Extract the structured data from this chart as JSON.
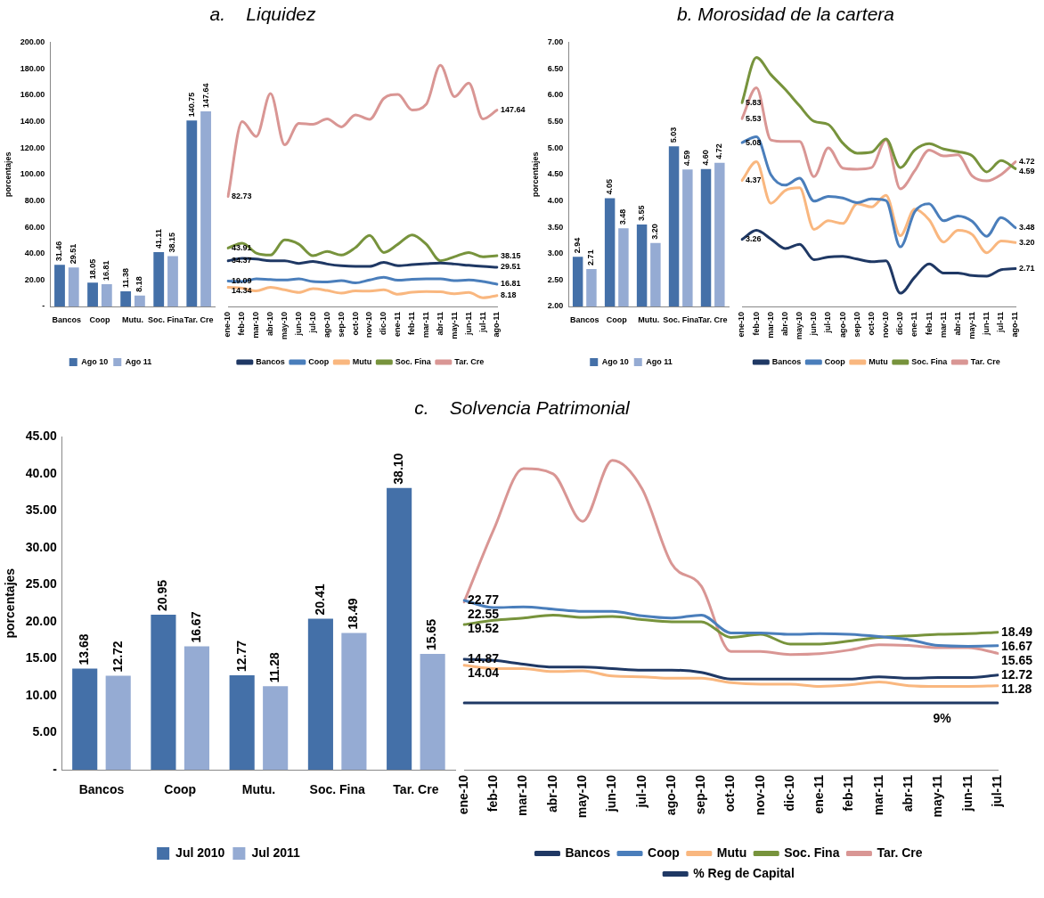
{
  "chart_data": [
    {
      "type": "bar",
      "ylabel": "porcentajes",
      "categories": [
        "Bancos",
        "Coop",
        "Mutu.",
        "Soc. Fina",
        "Tar. Cre"
      ],
      "legend": "bottom",
      "ylim": [
        0,
        200
      ],
      "yticks": [
        {
          "value": 0,
          "label": "-"
        },
        {
          "value": 20,
          "label": "20.00"
        },
        {
          "value": 40,
          "label": "40.00"
        },
        {
          "value": 60,
          "label": "60.00"
        },
        {
          "value": 80,
          "label": "80.00"
        },
        {
          "value": 100,
          "label": "100.00"
        },
        {
          "value": 120,
          "label": "120.00"
        },
        {
          "value": 140,
          "label": "140.00"
        },
        {
          "value": 160,
          "label": "160.00"
        },
        {
          "value": 180,
          "label": "180.00"
        },
        {
          "value": 200,
          "label": "200.00"
        }
      ],
      "series": [
        {
          "name": "Ago 10",
          "color": "#4470a8",
          "values": [
            31.46,
            18.05,
            11.38,
            41.11,
            140.75
          ],
          "value_labels": [
            "31.46",
            "18.05",
            "11.38",
            "41.11",
            "140.75"
          ]
        },
        {
          "name": "Ago 11",
          "color": "#95abd3",
          "values": [
            29.51,
            16.81,
            8.18,
            38.15,
            147.64
          ],
          "value_labels": [
            "29.51",
            "16.81",
            "8.18",
            "38.15",
            "147.64"
          ]
        }
      ]
    },
    {
      "type": "line",
      "title": "a.    Liquidez",
      "categories": [
        "ene-10",
        "feb-10",
        "mar-10",
        "abr-10",
        "may-10",
        "jun-10",
        "jul-10",
        "ago-10",
        "sep-10",
        "oct-10",
        "nov-10",
        "dic-10",
        "ene-11",
        "feb-11",
        "mar-11",
        "abr-11",
        "may-11",
        "jun-11",
        "jul-11",
        "ago-11"
      ],
      "legend": "bottom",
      "marker": "none",
      "tick_labels": "x",
      "ylim": [
        0,
        200
      ],
      "series": [
        {
          "name": "Bancos",
          "color": "#1f3864",
          "values": [
            34.37,
            36.1,
            35.6,
            34.4,
            34.4,
            32.4,
            33.9,
            31.9,
            30.6,
            30.1,
            30.1,
            33.1,
            30.6,
            31.4,
            32.1,
            32.6,
            31.9,
            30.9,
            30.1,
            29.51
          ],
          "value_labels": [
            "34.37",
            null,
            null,
            null,
            null,
            null,
            null,
            null,
            null,
            null,
            null,
            null,
            null,
            null,
            null,
            null,
            null,
            null,
            null,
            "29.51"
          ]
        },
        {
          "name": "Coop",
          "color": "#4a7ebb",
          "values": [
            19.09,
            18.7,
            20.7,
            20.2,
            19.9,
            20.7,
            18.7,
            18.4,
            19.4,
            17.7,
            19.9,
            21.9,
            19.7,
            20.4,
            20.7,
            20.7,
            19.4,
            19.9,
            18.7,
            16.81
          ],
          "value_labels": [
            "19.09",
            null,
            null,
            null,
            null,
            null,
            null,
            null,
            null,
            null,
            null,
            null,
            null,
            null,
            null,
            null,
            null,
            null,
            null,
            "16.81"
          ]
        },
        {
          "name": "Mutu",
          "color": "#f9b77f",
          "values": [
            14.34,
            13.7,
            11.7,
            14.4,
            12.5,
            10.5,
            13.4,
            12.0,
            10.0,
            11.7,
            11.5,
            12.5,
            9.2,
            10.7,
            11.2,
            11.0,
            9.5,
            10.5,
            6.5,
            8.18
          ],
          "value_labels": [
            "14.34",
            null,
            null,
            null,
            null,
            null,
            null,
            null,
            null,
            null,
            null,
            null,
            null,
            null,
            null,
            null,
            null,
            null,
            null,
            "8.18"
          ]
        },
        {
          "name": "Soc. Fina",
          "color": "#77933c",
          "values": [
            43.91,
            47.6,
            40.1,
            38.6,
            50.0,
            46.8,
            38.1,
            41.3,
            38.6,
            44.3,
            53.5,
            40.6,
            46.8,
            53.8,
            46.8,
            34.4,
            37.4,
            40.6,
            37.4,
            38.15
          ],
          "value_labels": [
            "43.91",
            null,
            null,
            null,
            null,
            null,
            null,
            null,
            null,
            null,
            null,
            null,
            null,
            null,
            null,
            null,
            null,
            null,
            null,
            "38.15"
          ]
        },
        {
          "name": "Tar. Cre",
          "color": "#d99694",
          "values": [
            82.73,
            139,
            127.8,
            160,
            121.5,
            137.7,
            137,
            141,
            135,
            144,
            140.7,
            156.4,
            159.4,
            147.7,
            152,
            181.3,
            157.7,
            168,
            141,
            147.64
          ],
          "value_labels": [
            "82.73",
            null,
            null,
            null,
            null,
            null,
            null,
            null,
            null,
            null,
            null,
            null,
            null,
            null,
            null,
            null,
            null,
            null,
            null,
            "147.64"
          ]
        }
      ]
    },
    {
      "type": "bar",
      "ylabel": "porcentajes",
      "categories": [
        "Bancos",
        "Coop",
        "Mutu.",
        "Soc. Fina",
        "Tar. Cre"
      ],
      "legend": "bottom",
      "ylim": [
        2,
        7
      ],
      "yticks": [
        {
          "value": 2,
          "label": "2.00"
        },
        {
          "value": 2.5,
          "label": "2.50"
        },
        {
          "value": 3,
          "label": "3.00"
        },
        {
          "value": 3.5,
          "label": "3.50"
        },
        {
          "value": 4,
          "label": "4.00"
        },
        {
          "value": 4.5,
          "label": "4.50"
        },
        {
          "value": 5,
          "label": "5.00"
        },
        {
          "value": 5.5,
          "label": "5.50"
        },
        {
          "value": 6,
          "label": "6.00"
        },
        {
          "value": 6.5,
          "label": "6.50"
        },
        {
          "value": 7,
          "label": "7.00"
        }
      ],
      "series": [
        {
          "name": "Ago 10",
          "color": "#4470a8",
          "values": [
            2.94,
            4.05,
            3.55,
            5.03,
            4.6
          ],
          "value_labels": [
            "2.94",
            "4.05",
            "3.55",
            "5.03",
            "4.60"
          ]
        },
        {
          "name": "Ago 11",
          "color": "#95abd3",
          "values": [
            2.71,
            3.48,
            3.2,
            4.59,
            4.72
          ],
          "value_labels": [
            "2.71",
            "3.48",
            "3.20",
            "4.59",
            "4.72"
          ]
        }
      ]
    },
    {
      "type": "line",
      "title": "b. Morosidad de la cartera",
      "categories": [
        "ene-10",
        "feb-10",
        "mar-10",
        "abr-10",
        "may-10",
        "jun-10",
        "jul-10",
        "ago-10",
        "sep-10",
        "oct-10",
        "nov-10",
        "dic-10",
        "ene-11",
        "feb-11",
        "mar-11",
        "abr-11",
        "may-11",
        "jun-11",
        "jul-11",
        "ago-11"
      ],
      "legend": "bottom",
      "marker": "none",
      "tick_labels": "x",
      "ylim": [
        2,
        7
      ],
      "series": [
        {
          "name": "Bancos",
          "color": "#1f3864",
          "values": [
            3.26,
            3.43,
            3.27,
            3.09,
            3.17,
            2.88,
            2.93,
            2.94,
            2.89,
            2.84,
            2.86,
            2.25,
            2.55,
            2.8,
            2.63,
            2.63,
            2.58,
            2.57,
            2.69,
            2.71
          ],
          "value_labels": [
            "3.26",
            null,
            null,
            null,
            null,
            null,
            null,
            null,
            null,
            null,
            null,
            null,
            null,
            null,
            null,
            null,
            null,
            null,
            null,
            "2.71"
          ]
        },
        {
          "name": "Coop",
          "color": "#4a7ebb",
          "values": [
            5.08,
            5.19,
            4.48,
            4.28,
            4.41,
            3.98,
            4.07,
            4.04,
            3.95,
            4.02,
            3.99,
            3.12,
            3.78,
            3.93,
            3.61,
            3.7,
            3.6,
            3.32,
            3.67,
            3.48
          ],
          "value_labels": [
            "5.08",
            null,
            null,
            null,
            null,
            null,
            null,
            null,
            null,
            null,
            null,
            null,
            null,
            null,
            null,
            null,
            null,
            null,
            null,
            "3.48"
          ]
        },
        {
          "name": "Mutu",
          "color": "#f9b77f",
          "values": [
            4.37,
            4.72,
            3.94,
            4.18,
            4.23,
            3.45,
            3.61,
            3.56,
            3.93,
            3.87,
            4.09,
            3.33,
            3.83,
            3.63,
            3.21,
            3.43,
            3.35,
            3.01,
            3.23,
            3.2
          ],
          "value_labels": [
            "4.37",
            null,
            null,
            null,
            null,
            null,
            null,
            null,
            null,
            null,
            null,
            null,
            null,
            null,
            null,
            null,
            null,
            null,
            null,
            "3.20"
          ]
        },
        {
          "name": "Soc. Fina",
          "color": "#77933c",
          "values": [
            5.83,
            6.68,
            6.36,
            6.08,
            5.77,
            5.48,
            5.42,
            5.07,
            4.88,
            4.9,
            5.15,
            4.61,
            4.94,
            5.06,
            4.96,
            4.91,
            4.83,
            4.53,
            4.74,
            4.59
          ],
          "value_labels": [
            "5.83",
            null,
            null,
            null,
            null,
            null,
            null,
            null,
            null,
            null,
            null,
            null,
            null,
            null,
            null,
            null,
            null,
            null,
            null,
            "4.59"
          ]
        },
        {
          "name": "Tar. Cre",
          "color": "#d99694",
          "values": [
            5.53,
            6.11,
            5.13,
            5.1,
            5.1,
            4.44,
            4.98,
            4.6,
            4.58,
            4.61,
            5.13,
            4.21,
            4.55,
            4.94,
            4.83,
            4.85,
            4.45,
            4.36,
            4.48,
            4.72
          ],
          "value_labels": [
            "5.53",
            null,
            null,
            null,
            null,
            null,
            null,
            null,
            null,
            null,
            null,
            null,
            null,
            null,
            null,
            null,
            null,
            null,
            null,
            "4.72"
          ]
        }
      ]
    },
    {
      "type": "bar",
      "ylabel": "porcentajes",
      "categories": [
        "Bancos",
        "Coop",
        "Mutu.",
        "Soc. Fina",
        "Tar. Cre"
      ],
      "legend": "bottom",
      "ylim": [
        0,
        45
      ],
      "yticks": [
        {
          "value": 0,
          "label": "-"
        },
        {
          "value": 5,
          "label": "5.00"
        },
        {
          "value": 10,
          "label": "10.00"
        },
        {
          "value": 15,
          "label": "15.00"
        },
        {
          "value": 20,
          "label": "20.00"
        },
        {
          "value": 25,
          "label": "25.00"
        },
        {
          "value": 30,
          "label": "30.00"
        },
        {
          "value": 35,
          "label": "35.00"
        },
        {
          "value": 40,
          "label": "40.00"
        },
        {
          "value": 45,
          "label": "45.00"
        }
      ],
      "series": [
        {
          "name": "Jul 2010",
          "color": "#4470a8",
          "values": [
            13.68,
            20.95,
            12.77,
            20.41,
            38.1
          ],
          "value_labels": [
            "13.68",
            "20.95",
            "12.77",
            "20.41",
            "38.10"
          ]
        },
        {
          "name": "Jul 2011",
          "color": "#95abd3",
          "values": [
            12.72,
            16.67,
            11.28,
            18.49,
            15.65
          ],
          "value_labels": [
            "12.72",
            "16.67",
            "11.28",
            "18.49",
            "15.65"
          ]
        }
      ]
    },
    {
      "type": "line",
      "title": "c.    Solvencia Patrimonial",
      "categories": [
        "ene-10",
        "feb-10",
        "mar-10",
        "abr-10",
        "may-10",
        "jun-10",
        "jul-10",
        "ago-10",
        "sep-10",
        "oct-10",
        "nov-10",
        "dic-10",
        "ene-11",
        "feb-11",
        "mar-11",
        "abr-11",
        "may-11",
        "jun-11",
        "jul-11"
      ],
      "legend": "bottom",
      "marker": "none",
      "tick_labels": "x",
      "ylim": [
        0,
        45
      ],
      "series": [
        {
          "name": "Bancos",
          "color": "#1f3864",
          "values": [
            14.87,
            14.7,
            14.2,
            13.8,
            13.8,
            13.6,
            13.4,
            13.4,
            13.1,
            12.2,
            12.2,
            12.2,
            12.2,
            12.2,
            12.5,
            12.3,
            12.4,
            12.4,
            12.72
          ],
          "value_labels": [
            "14.87",
            null,
            null,
            null,
            null,
            null,
            null,
            null,
            null,
            null,
            null,
            null,
            null,
            null,
            null,
            null,
            null,
            null,
            "12.72"
          ]
        },
        {
          "name": "Coop",
          "color": "#4a7ebb",
          "values": [
            22.77,
            21.8,
            21.9,
            21.6,
            21.3,
            21.3,
            20.7,
            20.4,
            20.8,
            18.4,
            18.4,
            18.2,
            18.3,
            18.2,
            17.9,
            17.5,
            16.7,
            16.6,
            16.67
          ],
          "value_labels": [
            "22.77",
            null,
            null,
            null,
            null,
            null,
            null,
            null,
            null,
            null,
            null,
            null,
            null,
            null,
            null,
            null,
            null,
            null,
            "16.67"
          ]
        },
        {
          "name": "Mutu",
          "color": "#f9b77f",
          "values": [
            14.04,
            13.6,
            13.6,
            13.2,
            13.3,
            12.6,
            12.5,
            12.3,
            12.3,
            11.7,
            11.5,
            11.5,
            11.2,
            11.4,
            11.8,
            11.3,
            11.2,
            11.2,
            11.28
          ],
          "value_labels": [
            "14.04",
            null,
            null,
            null,
            null,
            null,
            null,
            null,
            null,
            null,
            null,
            null,
            null,
            null,
            null,
            null,
            null,
            null,
            "11.28"
          ]
        },
        {
          "name": "Soc. Fina",
          "color": "#77933c",
          "values": [
            19.52,
            20.1,
            20.4,
            20.8,
            20.5,
            20.6,
            20.2,
            19.9,
            19.9,
            17.8,
            18.2,
            16.9,
            16.9,
            17.3,
            17.8,
            18.0,
            18.2,
            18.3,
            18.49
          ],
          "value_labels": [
            "19.52",
            null,
            null,
            null,
            null,
            null,
            null,
            null,
            null,
            null,
            null,
            null,
            null,
            null,
            null,
            null,
            null,
            null,
            "18.49"
          ]
        },
        {
          "name": "Tar. Cre",
          "color": "#d99694",
          "values": [
            22.55,
            32.3,
            40.5,
            39.8,
            33.4,
            41.6,
            37.8,
            27.7,
            24.7,
            15.9,
            15.9,
            15.5,
            15.6,
            16.1,
            16.8,
            16.7,
            16.4,
            16.4,
            15.65
          ],
          "value_labels": [
            "22.55",
            null,
            null,
            null,
            null,
            null,
            null,
            null,
            null,
            null,
            null,
            null,
            null,
            null,
            null,
            null,
            null,
            null,
            "15.65"
          ]
        },
        {
          "name": "% Reg de Capital",
          "color": "#1f3864",
          "values": [
            9,
            9,
            9,
            9,
            9,
            9,
            9,
            9,
            9,
            9,
            9,
            9,
            9,
            9,
            9,
            9,
            9,
            9,
            9
          ],
          "value_labels": [
            null,
            null,
            null,
            null,
            null,
            null,
            null,
            null,
            null,
            null,
            null,
            null,
            null,
            null,
            null,
            null,
            "9%",
            null,
            null
          ]
        }
      ]
    }
  ]
}
